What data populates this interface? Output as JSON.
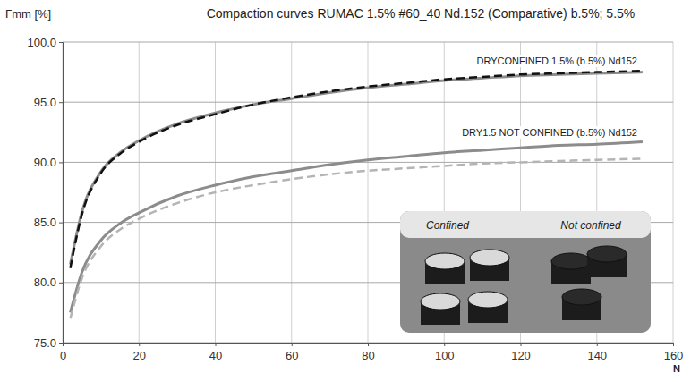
{
  "chart_data": {
    "type": "line",
    "title": "Compaction curves RUMAC 1.5% #60_40 Nd.152 (Comparative) b.5%; 5.5%",
    "x_label": "N",
    "y_label": "Γmm [%]",
    "x": [
      2,
      5,
      10,
      15,
      20,
      30,
      40,
      50,
      60,
      70,
      80,
      90,
      100,
      110,
      120,
      130,
      140,
      152
    ],
    "series": [
      {
        "color": "#8c8c8c",
        "line_style": "solid",
        "values": [
          81.5,
          85.8,
          89.2,
          90.8,
          91.8,
          93.2,
          94.1,
          94.8,
          95.3,
          95.8,
          96.2,
          96.5,
          96.8,
          97.0,
          97.2,
          97.3,
          97.4,
          97.5
        ]
      },
      {
        "color": "#111111",
        "line_style": "dashed",
        "values": [
          81.2,
          85.6,
          89.1,
          90.7,
          91.7,
          93.1,
          94.0,
          94.8,
          95.4,
          95.9,
          96.3,
          96.6,
          96.9,
          97.1,
          97.3,
          97.4,
          97.5,
          97.6
        ]
      },
      {
        "color": "#8c8c8c",
        "line_style": "solid",
        "values": [
          77.5,
          80.8,
          83.5,
          84.9,
          85.8,
          87.2,
          88.1,
          88.8,
          89.3,
          89.8,
          90.2,
          90.5,
          90.8,
          91.0,
          91.2,
          91.4,
          91.5,
          91.7
        ]
      },
      {
        "color": "#b4b4b4",
        "line_style": "dashed",
        "values": [
          77.0,
          80.3,
          83.0,
          84.4,
          85.3,
          86.6,
          87.5,
          88.1,
          88.6,
          89.0,
          89.3,
          89.5,
          89.7,
          89.9,
          90.0,
          90.1,
          90.2,
          90.3
        ]
      }
    ],
    "xlim": [
      0,
      160
    ],
    "xticks": [
      0,
      20,
      40,
      60,
      80,
      100,
      120,
      140,
      160
    ],
    "ylim": [
      75,
      100
    ],
    "yticks": [
      {
        "value": 75,
        "label": "75.0"
      },
      {
        "value": 80,
        "label": "80.0"
      },
      {
        "value": 85,
        "label": "85.0"
      },
      {
        "value": 90,
        "label": "90.0"
      },
      {
        "value": 95,
        "label": "95.0"
      },
      {
        "value": 100,
        "label": "100.0"
      }
    ],
    "grid": true,
    "annotations": [
      "DRYCONFINED 1.5% (b.5%) Nd152",
      "DRY1.5 NOT CONFINED (b.5%) Nd152",
      "Confined",
      "Not confined"
    ]
  }
}
